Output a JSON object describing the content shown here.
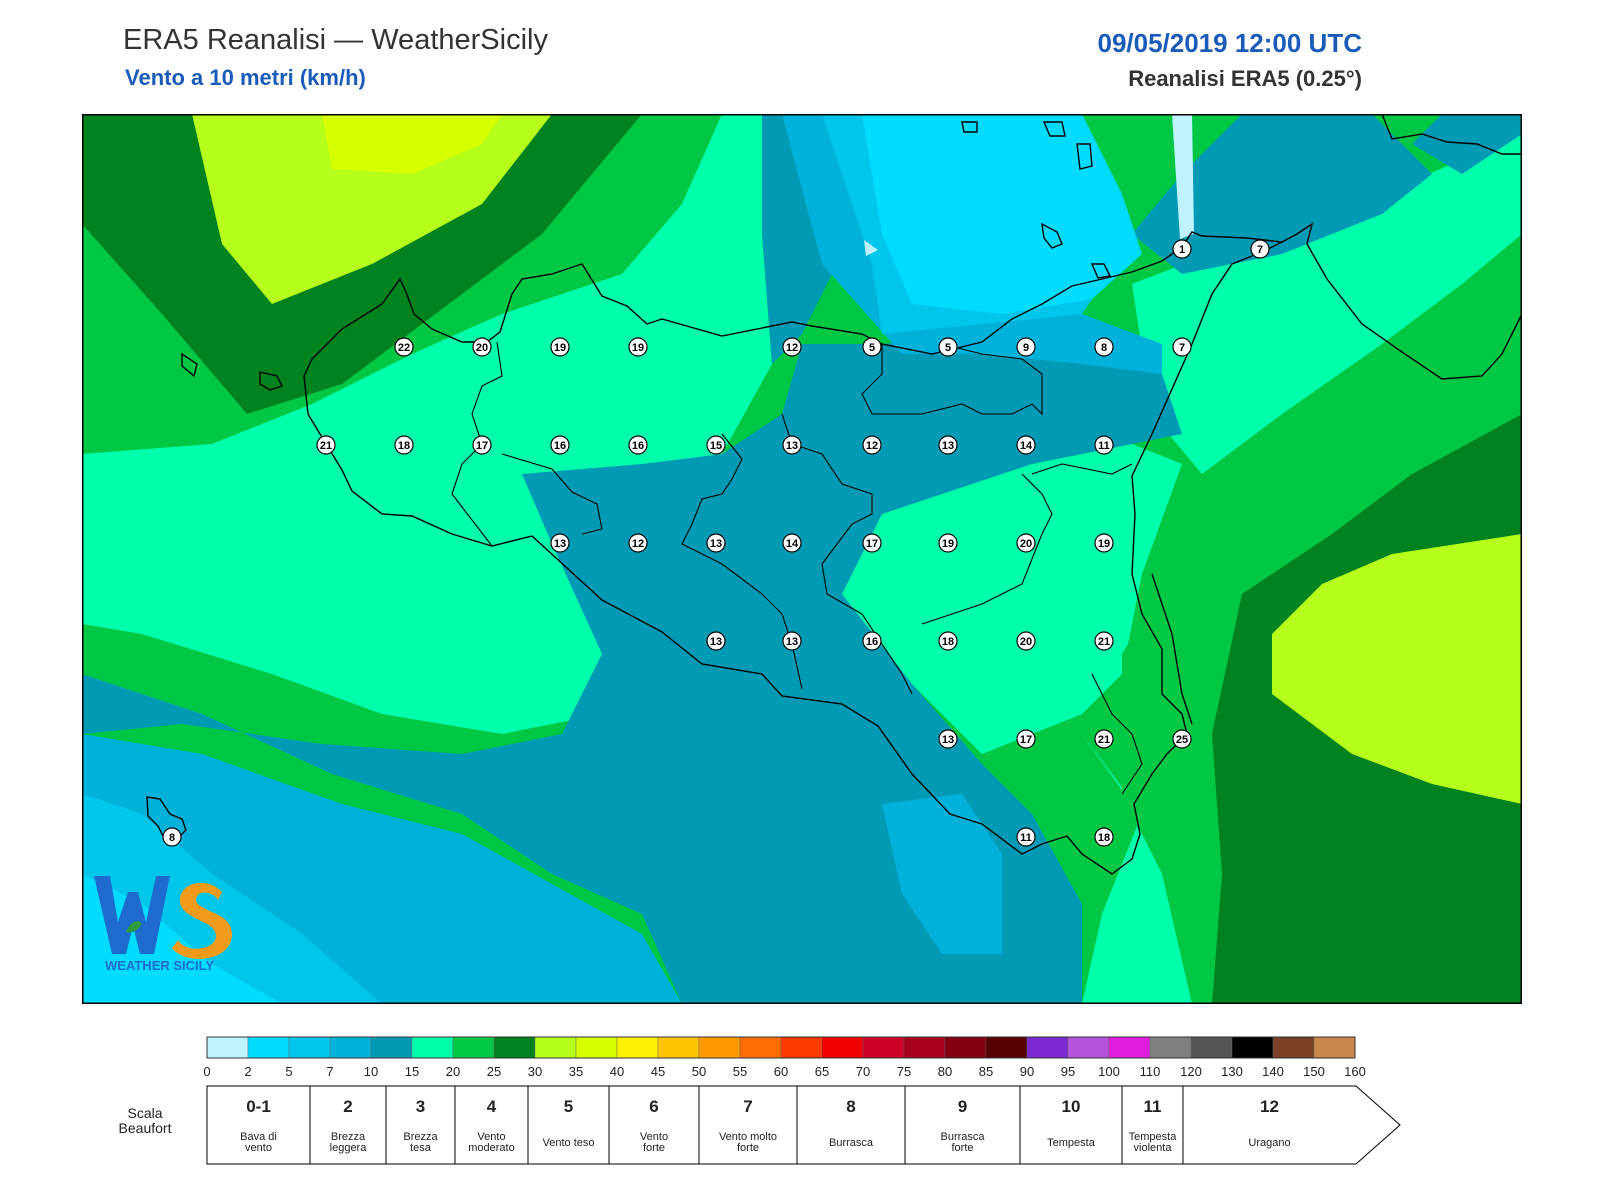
{
  "header": {
    "title": "ERA5 Reanalisi — WeatherSicily",
    "subtitle": "Vento a 10 metri (km/h)",
    "datetime": "09/05/2019 12:00 UTC",
    "source": "Reanalisi ERA5 (0.25°)"
  },
  "logo": {
    "text": "WEATHER SICILY",
    "letters": "WS"
  },
  "stations": [
    22,
    20,
    19,
    19,
    12,
    5,
    5,
    9,
    8,
    7,
    1,
    7,
    21,
    18,
    17,
    16,
    16,
    15,
    13,
    12,
    13,
    14,
    11,
    13,
    12,
    13,
    14,
    17,
    19,
    20,
    19,
    13,
    13,
    16,
    18,
    20,
    21,
    13,
    17,
    21,
    25,
    11,
    18,
    8
  ],
  "colorbar": {
    "ticks": [
      "0",
      "2",
      "5",
      "7",
      "10",
      "15",
      "20",
      "25",
      "30",
      "35",
      "40",
      "45",
      "50",
      "55",
      "60",
      "65",
      "70",
      "75",
      "80",
      "85",
      "90",
      "95",
      "100",
      "110",
      "120",
      "130",
      "140",
      "150",
      "160"
    ],
    "colors": [
      "#bff3ff",
      "#00dcff",
      "#00c6ec",
      "#00b2da",
      "#009ab4",
      "#00ffab",
      "#00c845",
      "#00821e",
      "#b5ff1a",
      "#d6ff00",
      "#fff000",
      "#ffc400",
      "#ff9a00",
      "#ff6c00",
      "#ff3a00",
      "#f00000",
      "#cd0028",
      "#a8001c",
      "#820010",
      "#560000",
      "#7a2ad0",
      "#b453dc",
      "#e21ede",
      "#808080",
      "#555555",
      "#000000",
      "#7b4126",
      "#c8874b"
    ]
  },
  "beaufort": {
    "label": "Scala Beaufort",
    "label_line1": "Scala",
    "label_line2": "Beaufort",
    "levels": [
      {
        "force": "0-1",
        "l1": "Bava di",
        "l2": "vento"
      },
      {
        "force": "2",
        "l1": "Brezza",
        "l2": "leggera"
      },
      {
        "force": "3",
        "l1": "Brezza",
        "l2": "tesa"
      },
      {
        "force": "4",
        "l1": "Vento",
        "l2": "moderato"
      },
      {
        "force": "5",
        "l1": "Vento teso",
        "l2": ""
      },
      {
        "force": "6",
        "l1": "Vento",
        "l2": "forte"
      },
      {
        "force": "7",
        "l1": "Vento molto",
        "l2": "forte"
      },
      {
        "force": "8",
        "l1": "Burrasca",
        "l2": ""
      },
      {
        "force": "9",
        "l1": "Burrasca",
        "l2": "forte"
      },
      {
        "force": "10",
        "l1": "Tempesta",
        "l2": ""
      },
      {
        "force": "11",
        "l1": "Tempesta",
        "l2": "violenta"
      },
      {
        "force": "12",
        "l1": "Uragano",
        "l2": ""
      }
    ]
  }
}
